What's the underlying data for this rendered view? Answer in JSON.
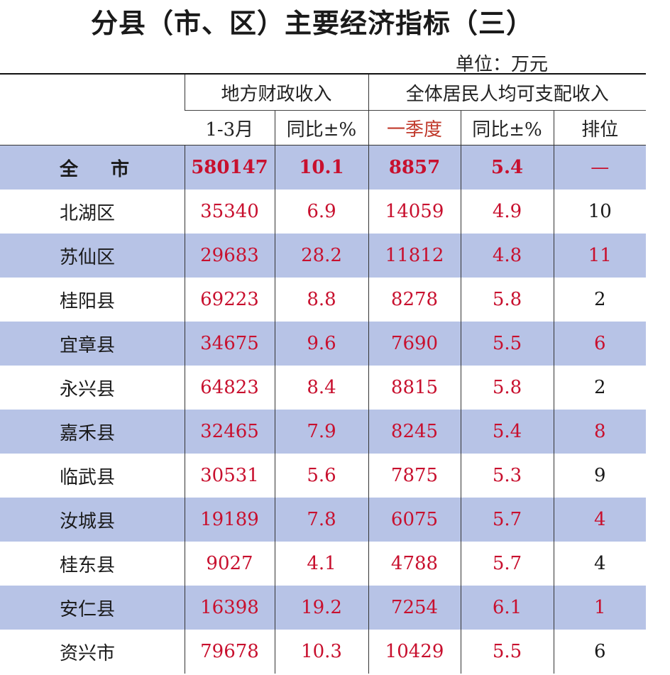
{
  "title": "分县（市、区）主要经济指标（三）",
  "unit": "单位：万元",
  "header": {
    "group1": "地方财政收入",
    "group2": "全体居民人均可支配收入",
    "sub": [
      "1-3月",
      "同比±%",
      "一季度",
      "同比±%",
      "排位"
    ]
  },
  "total": {
    "name_part1": "全",
    "name_part2": "市",
    "fiscal": "580147",
    "fiscal_yoy": "10.1",
    "income": "8857",
    "income_yoy": "5.4",
    "rank": "—"
  },
  "rows": [
    {
      "name": "北湖区",
      "fiscal": "35340",
      "fiscal_yoy": "6.9",
      "income": "14059",
      "income_yoy": "4.9",
      "rank": "10"
    },
    {
      "name": "苏仙区",
      "fiscal": "29683",
      "fiscal_yoy": "28.2",
      "income": "11812",
      "income_yoy": "4.8",
      "rank": "11"
    },
    {
      "name": "桂阳县",
      "fiscal": "69223",
      "fiscal_yoy": "8.8",
      "income": "8278",
      "income_yoy": "5.8",
      "rank": "2"
    },
    {
      "name": "宜章县",
      "fiscal": "34675",
      "fiscal_yoy": "9.6",
      "income": "7690",
      "income_yoy": "5.5",
      "rank": "6"
    },
    {
      "name": "永兴县",
      "fiscal": "64823",
      "fiscal_yoy": "8.4",
      "income": "8815",
      "income_yoy": "5.8",
      "rank": "2"
    },
    {
      "name": "嘉禾县",
      "fiscal": "32465",
      "fiscal_yoy": "7.9",
      "income": "8245",
      "income_yoy": "5.4",
      "rank": "8"
    },
    {
      "name": "临武县",
      "fiscal": "30531",
      "fiscal_yoy": "5.6",
      "income": "7875",
      "income_yoy": "5.3",
      "rank": "9"
    },
    {
      "name": "汝城县",
      "fiscal": "19189",
      "fiscal_yoy": "7.8",
      "income": "6075",
      "income_yoy": "5.7",
      "rank": "4"
    },
    {
      "name": "桂东县",
      "fiscal": "9027",
      "fiscal_yoy": "4.1",
      "income": "4788",
      "income_yoy": "5.7",
      "rank": "4"
    },
    {
      "name": "安仁县",
      "fiscal": "16398",
      "fiscal_yoy": "19.2",
      "income": "7254",
      "income_yoy": "6.1",
      "rank": "1"
    },
    {
      "name": "资兴市",
      "fiscal": "79678",
      "fiscal_yoy": "10.3",
      "income": "10429",
      "income_yoy": "5.5",
      "rank": "6"
    }
  ],
  "colors": {
    "shade": "#b7c3e6",
    "value_red": "#c8102e"
  }
}
